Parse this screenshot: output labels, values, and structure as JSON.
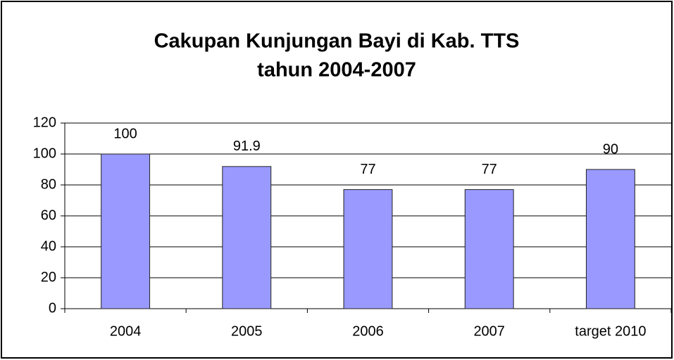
{
  "chart_data": {
    "type": "bar",
    "title": [
      "Cakupan Kunjungan Bayi di Kab. TTS",
      "tahun 2004-2007"
    ],
    "categories": [
      "2004",
      "2005",
      "2006",
      "2007",
      "target 2010"
    ],
    "values": [
      100,
      91.9,
      77,
      77,
      90
    ],
    "color": "#9999ff",
    "ylim": [
      0,
      120
    ],
    "yticks": [
      0,
      20,
      40,
      60,
      80,
      100,
      120
    ],
    "grid": true
  }
}
